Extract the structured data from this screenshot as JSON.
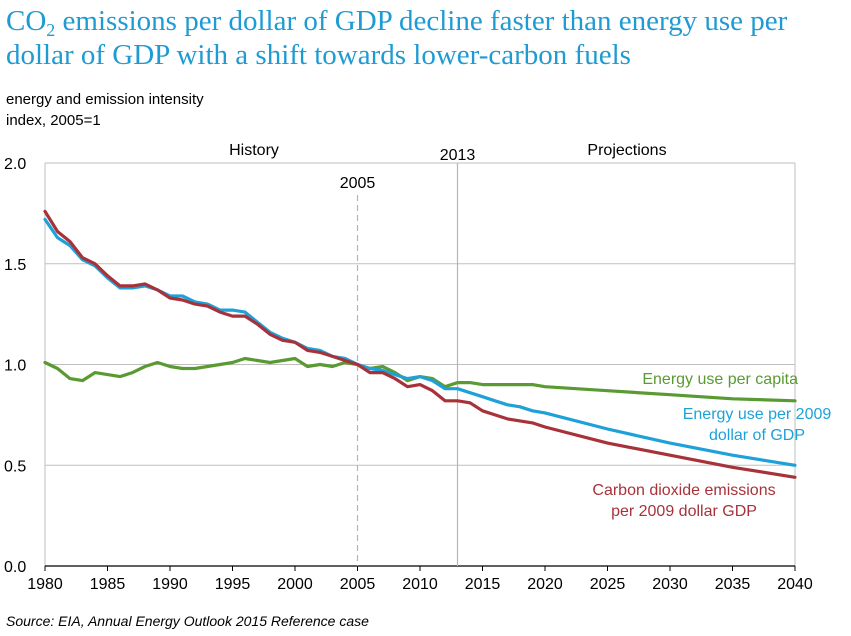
{
  "chart_data": {
    "type": "line",
    "title_prefix": "CO",
    "title_sub": "2",
    "title_rest": " emissions per dollar of GDP decline faster than energy use per dollar of GDP with a shift towards lower-carbon fuels",
    "ylabel_line1": "energy and emission intensity",
    "ylabel_line2": "index, 2005=1",
    "source": "Source:  EIA, Annual Energy Outlook 2015 Reference case",
    "xlim": [
      1980,
      2040
    ],
    "ylim": [
      0,
      2
    ],
    "x_ticks": [
      1980,
      1985,
      1990,
      1995,
      2000,
      2005,
      2010,
      2015,
      2020,
      2025,
      2030,
      2035,
      2040
    ],
    "y_ticks": [
      "0.0",
      "0.5",
      "1.0",
      "1.5",
      "2.0"
    ],
    "region_labels": {
      "history": "History",
      "projections": "Projections"
    },
    "markers": [
      {
        "label": "2005",
        "x": 2005,
        "style": "dashed"
      },
      {
        "label": "2013",
        "x": 2013,
        "style": "solid"
      }
    ],
    "colors": {
      "green": "#5a9a32",
      "blue": "#1ea1d8",
      "red": "#a8323a",
      "grid": "#bfbfbf",
      "marker": "#b5b5b5"
    },
    "series": [
      {
        "name": "Energy use per capita",
        "label_lines": [
          "Energy use per capita"
        ],
        "color": "#5a9a32",
        "x": [
          1980,
          1981,
          1982,
          1983,
          1984,
          1985,
          1986,
          1987,
          1988,
          1989,
          1990,
          1991,
          1992,
          1993,
          1994,
          1995,
          1996,
          1997,
          1998,
          1999,
          2000,
          2001,
          2002,
          2003,
          2004,
          2005,
          2006,
          2007,
          2008,
          2009,
          2010,
          2011,
          2012,
          2013,
          2014,
          2015,
          2016,
          2017,
          2018,
          2019,
          2020,
          2025,
          2030,
          2035,
          2040
        ],
        "y": [
          1.01,
          0.98,
          0.93,
          0.92,
          0.96,
          0.95,
          0.94,
          0.96,
          0.99,
          1.01,
          0.99,
          0.98,
          0.98,
          0.99,
          1.0,
          1.01,
          1.03,
          1.02,
          1.01,
          1.02,
          1.03,
          0.99,
          1.0,
          0.99,
          1.01,
          1.0,
          0.98,
          0.99,
          0.96,
          0.92,
          0.94,
          0.93,
          0.89,
          0.91,
          0.91,
          0.9,
          0.9,
          0.9,
          0.9,
          0.9,
          0.89,
          0.87,
          0.85,
          0.83,
          0.82
        ]
      },
      {
        "name": "Energy use per 2009 dollar of GDP",
        "label_lines": [
          "Energy use per 2009",
          "dollar of GDP"
        ],
        "color": "#1ea1d8",
        "x": [
          1980,
          1981,
          1982,
          1983,
          1984,
          1985,
          1986,
          1987,
          1988,
          1989,
          1990,
          1991,
          1992,
          1993,
          1994,
          1995,
          1996,
          1997,
          1998,
          1999,
          2000,
          2001,
          2002,
          2003,
          2004,
          2005,
          2006,
          2007,
          2008,
          2009,
          2010,
          2011,
          2012,
          2013,
          2014,
          2015,
          2016,
          2017,
          2018,
          2019,
          2020,
          2025,
          2030,
          2035,
          2040
        ],
        "y": [
          1.72,
          1.63,
          1.59,
          1.52,
          1.49,
          1.43,
          1.38,
          1.38,
          1.39,
          1.37,
          1.34,
          1.34,
          1.31,
          1.3,
          1.27,
          1.27,
          1.26,
          1.21,
          1.16,
          1.13,
          1.11,
          1.08,
          1.07,
          1.04,
          1.03,
          1.0,
          0.98,
          0.97,
          0.95,
          0.93,
          0.94,
          0.92,
          0.88,
          0.88,
          0.86,
          0.84,
          0.82,
          0.8,
          0.79,
          0.77,
          0.76,
          0.68,
          0.61,
          0.55,
          0.5
        ]
      },
      {
        "name": "Carbon dioxide emissions per 2009 dollar GDP",
        "label_lines": [
          "Carbon dioxide emissions",
          "per 2009 dollar GDP"
        ],
        "color": "#a8323a",
        "x": [
          1980,
          1981,
          1982,
          1983,
          1984,
          1985,
          1986,
          1987,
          1988,
          1989,
          1990,
          1991,
          1992,
          1993,
          1994,
          1995,
          1996,
          1997,
          1998,
          1999,
          2000,
          2001,
          2002,
          2003,
          2004,
          2005,
          2006,
          2007,
          2008,
          2009,
          2010,
          2011,
          2012,
          2013,
          2014,
          2015,
          2016,
          2017,
          2018,
          2019,
          2020,
          2025,
          2030,
          2035,
          2040
        ],
        "y": [
          1.76,
          1.66,
          1.61,
          1.53,
          1.5,
          1.44,
          1.39,
          1.39,
          1.4,
          1.37,
          1.33,
          1.32,
          1.3,
          1.29,
          1.26,
          1.24,
          1.24,
          1.2,
          1.15,
          1.12,
          1.11,
          1.07,
          1.06,
          1.04,
          1.02,
          1.0,
          0.96,
          0.96,
          0.93,
          0.89,
          0.9,
          0.87,
          0.82,
          0.82,
          0.81,
          0.77,
          0.75,
          0.73,
          0.72,
          0.71,
          0.69,
          0.61,
          0.55,
          0.49,
          0.44
        ]
      }
    ]
  }
}
